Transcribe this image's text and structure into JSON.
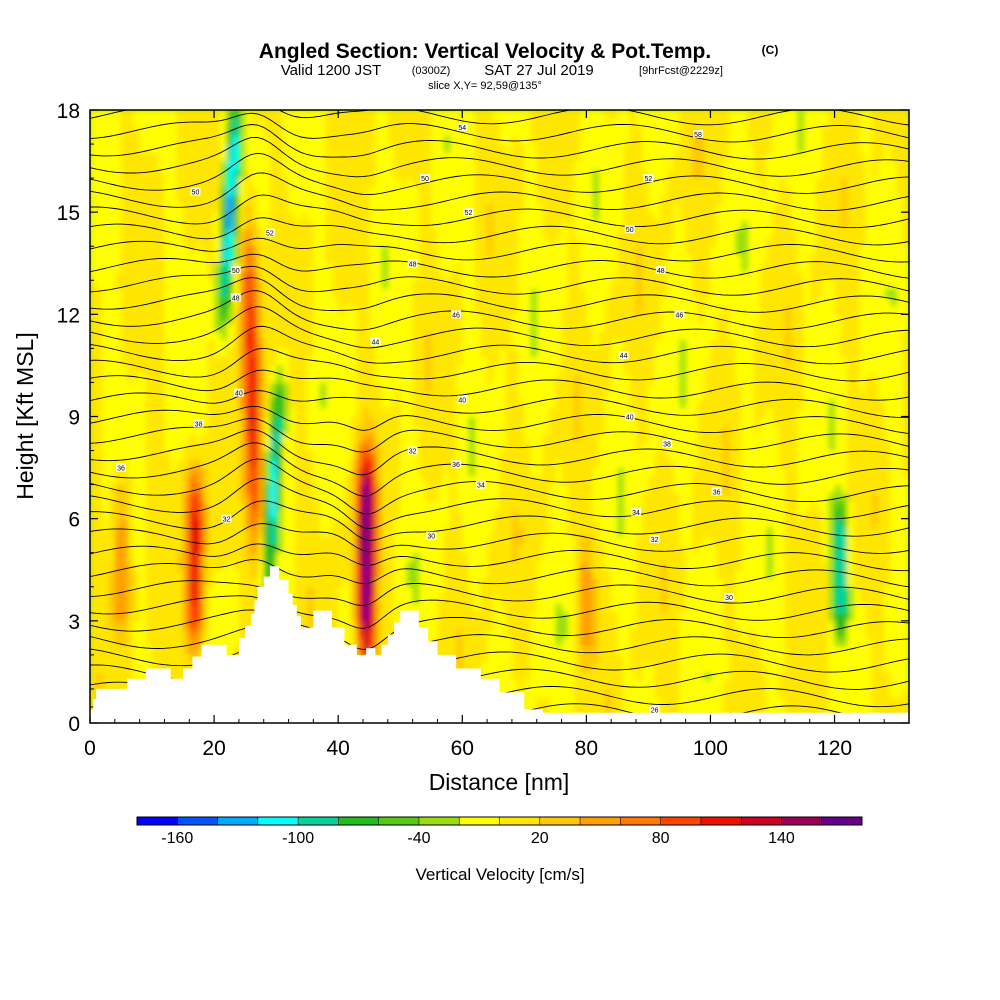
{
  "chart_data": {
    "type": "heatmap",
    "title": "Angled Section: Vertical Velocity & Pot.Temp.",
    "title_mark": "(C)",
    "subtitle": {
      "valid": "Valid 1200 JST",
      "utc": "(0300Z)",
      "date": "SAT 27 Jul 2019",
      "forecast": "[9hrFcst@2229z]"
    },
    "slice": "slice X,Y= 92,59@135°",
    "xlabel": "Distance [nm]",
    "ylabel": "Height [Kft MSL]",
    "xlim": [
      0,
      132
    ],
    "ylim": [
      0,
      18
    ],
    "x_ticks": [
      0,
      20,
      40,
      60,
      80,
      100,
      120
    ],
    "y_ticks": [
      0,
      3,
      6,
      9,
      12,
      15,
      18
    ],
    "colorbar": {
      "label": "Vertical Velocity [cm/s]",
      "range": [
        -180,
        180
      ],
      "step": 20,
      "tick_labels": [
        -160,
        -100,
        -40,
        20,
        80,
        140
      ],
      "colors": [
        "#0000ff",
        "#0055ff",
        "#00aaff",
        "#00ffff",
        "#00d39b",
        "#22bb22",
        "#55c811",
        "#99dd11",
        "#ffff00",
        "#ffe600",
        "#ffc800",
        "#ffa000",
        "#ff7800",
        "#ff4400",
        "#ee1100",
        "#cc0022",
        "#990055",
        "#660088"
      ]
    },
    "updraft_cores": [
      {
        "x": 17,
        "z_range": [
          2.5,
          7.0
        ],
        "w": 120
      },
      {
        "x": 27,
        "z_range": [
          5.0,
          14.5
        ],
        "w": 110
      },
      {
        "x": 44.5,
        "z_range": [
          2.0,
          7.5
        ],
        "w": 170
      },
      {
        "x": 5,
        "z_range": [
          3.0,
          7.0
        ],
        "w": 60
      },
      {
        "x": 80,
        "z_range": [
          2.0,
          5.0
        ],
        "w": 50
      }
    ],
    "downdraft_cores": [
      {
        "x": 22.5,
        "z_range": [
          12.0,
          18.0
        ],
        "w": -110
      },
      {
        "x": 29.5,
        "z_range": [
          4.0,
          10.0
        ],
        "w": -100
      },
      {
        "x": 121,
        "z_range": [
          3.0,
          6.0
        ],
        "w": -110
      }
    ],
    "isentrope_labels": [
      {
        "x": 5,
        "z": 7.5,
        "text": "36"
      },
      {
        "x": 17.5,
        "z": 8.8,
        "text": "38"
      },
      {
        "x": 22,
        "z": 6.0,
        "text": "32"
      },
      {
        "x": 24,
        "z": 9.7,
        "text": "40"
      },
      {
        "x": 29,
        "z": 14.4,
        "text": "52"
      },
      {
        "x": 23.5,
        "z": 12.5,
        "text": "48"
      },
      {
        "x": 23.5,
        "z": 13.3,
        "text": "50"
      },
      {
        "x": 46,
        "z": 11.2,
        "text": "44"
      },
      {
        "x": 52,
        "z": 8.0,
        "text": "32"
      },
      {
        "x": 55,
        "z": 5.5,
        "text": "30"
      },
      {
        "x": 59,
        "z": 7.6,
        "text": "36"
      },
      {
        "x": 63,
        "z": 7.0,
        "text": "34"
      },
      {
        "x": 60,
        "z": 9.5,
        "text": "40"
      },
      {
        "x": 52,
        "z": 13.5,
        "text": "48"
      },
      {
        "x": 59,
        "z": 12.0,
        "text": "46"
      },
      {
        "x": 54,
        "z": 16.0,
        "text": "50"
      },
      {
        "x": 60,
        "z": 17.5,
        "text": "54"
      },
      {
        "x": 61,
        "z": 15.0,
        "text": "52"
      },
      {
        "x": 90,
        "z": 16.0,
        "text": "52"
      },
      {
        "x": 87,
        "z": 14.5,
        "text": "50"
      },
      {
        "x": 92,
        "z": 13.3,
        "text": "48"
      },
      {
        "x": 95,
        "z": 12.0,
        "text": "46"
      },
      {
        "x": 86,
        "z": 10.8,
        "text": "44"
      },
      {
        "x": 87,
        "z": 9.0,
        "text": "40"
      },
      {
        "x": 93,
        "z": 8.2,
        "text": "38"
      },
      {
        "x": 88,
        "z": 6.2,
        "text": "34"
      },
      {
        "x": 91,
        "z": 5.4,
        "text": "32"
      },
      {
        "x": 101,
        "z": 6.8,
        "text": "36"
      },
      {
        "x": 103,
        "z": 3.7,
        "text": "30"
      },
      {
        "x": 98,
        "z": 17.3,
        "text": "58"
      },
      {
        "x": 17,
        "z": 15.6,
        "text": "50"
      },
      {
        "x": 91,
        "z": 0.4,
        "text": "26"
      }
    ]
  }
}
